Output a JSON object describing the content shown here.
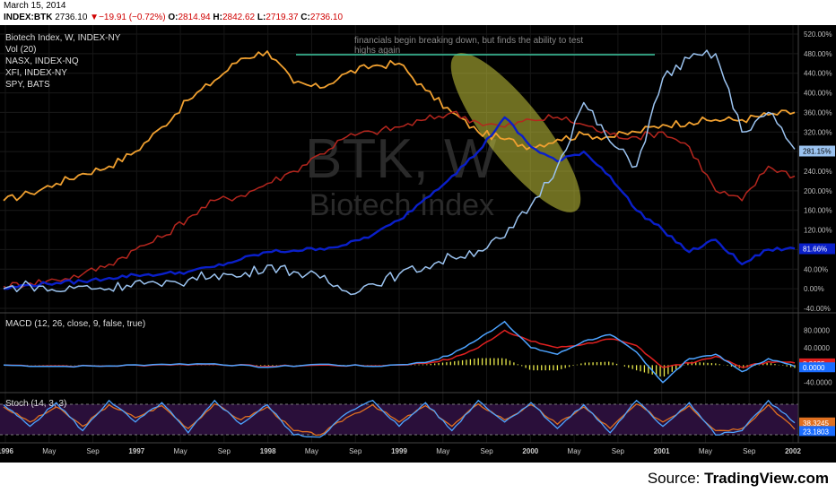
{
  "header": {
    "date": "March 15, 2014",
    "symbol": "INDEX:BTK",
    "last": "2736.10",
    "change_arrow": "▼",
    "change": "−19.91 (−0.72%)",
    "open_label": "O:",
    "open": "2814.94",
    "high_label": "H:",
    "high": "2842.62",
    "low_label": "L:",
    "low": "2719.37",
    "close_label": "C:",
    "close": "2736.10"
  },
  "legend": {
    "main": "Biotech Index, W, INDEX-NY",
    "vol": "Vol (20)",
    "nasx": "NASX, INDEX-NQ",
    "xfi": "XFI, INDEX-NY",
    "spy": "SPY, BATS"
  },
  "watermark": {
    "symbol": "BTK, W",
    "name": "Biotech Index"
  },
  "annotation": {
    "text_line1": "financials begin breaking down, but finds the ability to test",
    "text_line2": "highs again"
  },
  "macd_label": "MACD (12, 26, close, 9, false, true)",
  "stoch_label": "Stoch (14, 3, 3)",
  "source": {
    "prefix": "Source: ",
    "brand": "TradingView.com"
  },
  "colors": {
    "background": "#000000",
    "btk": "#9bc3f0",
    "nasx": "#0a1fc9",
    "xfi": "#b5261e",
    "spy": "#f0a030",
    "macd": "#4da3ff",
    "signal": "#e02020",
    "hist": "#e8e84a",
    "stoch_bg": "#2a0f3a",
    "stoch_k": "#4da3ff",
    "stoch_d": "#e07020",
    "resistance": "#3cc8a0",
    "ellipse": "#c8c83c"
  },
  "chart_data": [
    {
      "type": "line",
      "x_ticks": [
        "1996",
        "May",
        "Sep",
        "1997",
        "May",
        "Sep",
        "1998",
        "May",
        "Sep",
        "1999",
        "May",
        "Sep",
        "2000",
        "May",
        "Sep",
        "2001",
        "May",
        "Sep",
        "2002"
      ],
      "y_ticks": [
        "520.00%",
        "480.00%",
        "440.00%",
        "400.00%",
        "360.00%",
        "320.00%",
        "280.00%",
        "240.00%",
        "200.00%",
        "160.00%",
        "120.00%",
        "80.00%",
        "40.00%",
        "0.00%",
        "-40.00%"
      ],
      "ylim": [
        -40,
        520
      ],
      "last_value_labels": [
        {
          "series": "BTK",
          "text": "281.15%",
          "value": 281.15
        },
        {
          "series": "NASX",
          "text": "81.66%",
          "value": 81.66
        }
      ],
      "series": [
        {
          "name": "BTK",
          "x": [
            0,
            10,
            20,
            30,
            40,
            50,
            60,
            70,
            80,
            90,
            100,
            110,
            120,
            130,
            140,
            150,
            160,
            170,
            180,
            190,
            200,
            210,
            220,
            230,
            240,
            250,
            260,
            270,
            280,
            290,
            300
          ],
          "values": [
            0,
            8,
            -5,
            5,
            0,
            15,
            5,
            18,
            30,
            25,
            48,
            35,
            22,
            -5,
            10,
            30,
            45,
            65,
            78,
            105,
            170,
            250,
            380,
            300,
            250,
            430,
            470,
            480,
            320,
            360,
            285
          ]
        },
        {
          "name": "NASX",
          "x": [
            0,
            10,
            20,
            30,
            40,
            50,
            60,
            70,
            80,
            90,
            100,
            110,
            120,
            130,
            140,
            150,
            160,
            170,
            180,
            190,
            200,
            210,
            220,
            230,
            240,
            250,
            260,
            270,
            280,
            290,
            300
          ],
          "values": [
            0,
            8,
            12,
            15,
            22,
            28,
            30,
            35,
            45,
            60,
            75,
            78,
            82,
            90,
            110,
            140,
            185,
            230,
            280,
            350,
            290,
            260,
            280,
            230,
            160,
            120,
            75,
            100,
            50,
            80,
            82
          ]
        },
        {
          "name": "XFI",
          "x": [
            0,
            10,
            20,
            30,
            40,
            50,
            60,
            70,
            80,
            90,
            100,
            110,
            120,
            130,
            140,
            150,
            160,
            170,
            180,
            190,
            200,
            210,
            220,
            230,
            240,
            250,
            260,
            270,
            280,
            290,
            300
          ],
          "values": [
            5,
            12,
            18,
            30,
            50,
            80,
            105,
            145,
            180,
            190,
            215,
            240,
            275,
            310,
            320,
            330,
            345,
            360,
            340,
            330,
            345,
            350,
            335,
            315,
            310,
            320,
            290,
            200,
            180,
            250,
            230
          ]
        },
        {
          "name": "SPY",
          "x": [
            0,
            10,
            20,
            30,
            40,
            50,
            60,
            70,
            80,
            90,
            100,
            110,
            120,
            130,
            140,
            150,
            160,
            170,
            180,
            190,
            200,
            210,
            220,
            230,
            240,
            250,
            260,
            270,
            280,
            290,
            300
          ],
          "values": [
            180,
            195,
            215,
            235,
            250,
            280,
            330,
            385,
            425,
            470,
            485,
            420,
            410,
            440,
            455,
            460,
            405,
            360,
            320,
            305,
            290,
            305,
            315,
            310,
            320,
            335,
            340,
            345,
            345,
            355,
            360
          ]
        }
      ]
    },
    {
      "type": "line",
      "title": "MACD (12, 26, close, 9, false, true)",
      "y_ticks": [
        "80.0000",
        "40.0000",
        "0.0000",
        "-40.0000"
      ],
      "ylim": [
        -55,
        110
      ],
      "value_labels": [
        "8.8635",
        "0.0000"
      ],
      "series": [
        {
          "name": "MACD",
          "x": [
            0,
            20,
            40,
            60,
            80,
            100,
            120,
            140,
            160,
            170,
            180,
            190,
            200,
            210,
            220,
            230,
            240,
            250,
            260,
            270,
            280,
            290,
            300
          ],
          "values": [
            0,
            -3,
            -2,
            2,
            3,
            -5,
            2,
            -3,
            6,
            25,
            60,
            100,
            40,
            25,
            55,
            70,
            30,
            -40,
            15,
            25,
            -15,
            15,
            -3
          ]
        },
        {
          "name": "Signal",
          "x": [
            0,
            20,
            40,
            60,
            80,
            100,
            120,
            140,
            160,
            170,
            180,
            190,
            200,
            210,
            220,
            230,
            240,
            250,
            260,
            270,
            280,
            290,
            300
          ],
          "values": [
            0,
            -2,
            -2,
            1,
            2,
            -3,
            0,
            -2,
            4,
            15,
            40,
            80,
            55,
            40,
            48,
            60,
            45,
            -5,
            5,
            20,
            -5,
            8,
            5
          ]
        }
      ]
    },
    {
      "type": "line",
      "title": "Stoch (14, 3, 3)",
      "ylim": [
        0,
        100
      ],
      "value_labels": [
        "38.3245",
        "23.1803"
      ],
      "bands": [
        80,
        20
      ],
      "series": [
        {
          "name": "%K",
          "x": [
            0,
            10,
            20,
            30,
            40,
            50,
            60,
            70,
            80,
            90,
            100,
            110,
            120,
            130,
            140,
            150,
            160,
            170,
            180,
            190,
            200,
            210,
            220,
            230,
            240,
            250,
            260,
            270,
            280,
            290,
            300
          ],
          "values": [
            80,
            30,
            85,
            20,
            90,
            40,
            85,
            15,
            90,
            35,
            80,
            10,
            5,
            60,
            90,
            30,
            85,
            20,
            90,
            40,
            85,
            25,
            80,
            15,
            90,
            30,
            85,
            10,
            20,
            90,
            38
          ]
        },
        {
          "name": "%D",
          "x": [
            0,
            10,
            20,
            30,
            40,
            50,
            60,
            70,
            80,
            90,
            100,
            110,
            120,
            130,
            140,
            150,
            160,
            170,
            180,
            190,
            200,
            210,
            220,
            230,
            240,
            250,
            260,
            270,
            280,
            290,
            300
          ],
          "values": [
            75,
            40,
            75,
            30,
            80,
            50,
            78,
            25,
            82,
            45,
            75,
            20,
            10,
            50,
            80,
            40,
            78,
            30,
            82,
            45,
            80,
            35,
            75,
            25,
            82,
            40,
            78,
            20,
            25,
            80,
            23
          ]
        }
      ]
    }
  ]
}
